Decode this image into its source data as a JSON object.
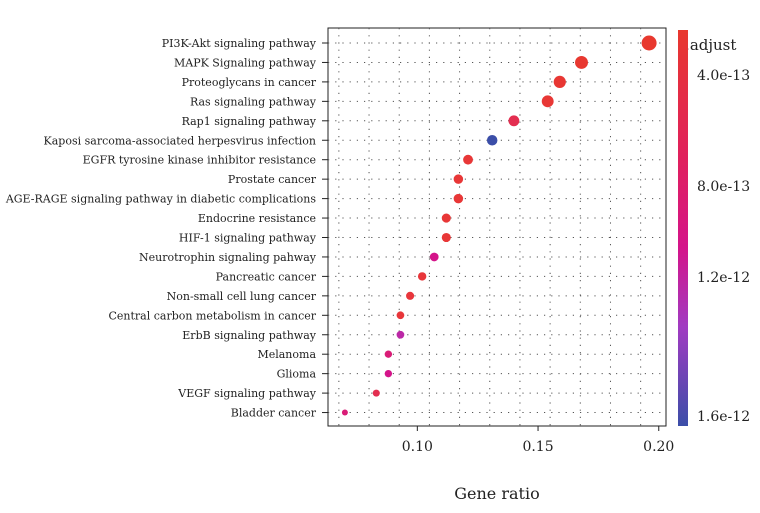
{
  "chart_data": {
    "type": "scatter",
    "xlabel": "Gene ratio",
    "ylabel": "",
    "xlim": [
      0.063,
      0.203
    ],
    "x_ticks": [
      0.1,
      0.15,
      0.2
    ],
    "x_tick_labels": [
      "0.10",
      "0.15",
      "0.20"
    ],
    "grid": true,
    "color_legend": {
      "title": "P.adjust",
      "position": "right",
      "labels": [
        "4.0e-13",
        "8.0e-13",
        "1.2e-12",
        "1.6e-12"
      ],
      "colors": {
        "low": "#e8382e",
        "mid": "#d4148a",
        "mid2": "#a13bc2",
        "high": "#3b4ea8"
      }
    },
    "points": [
      {
        "term": "PI3K-Akt signaling pathway",
        "gene_ratio": 0.196,
        "p_adjust": 1e-13,
        "count": 40
      },
      {
        "term": "MAPK Signaling pathway",
        "gene_ratio": 0.168,
        "p_adjust": 1.5e-13,
        "count": 34
      },
      {
        "term": "Proteoglycans in cancer",
        "gene_ratio": 0.159,
        "p_adjust": 2e-13,
        "count": 32
      },
      {
        "term": "Ras signaling pathway",
        "gene_ratio": 0.154,
        "p_adjust": 2.5e-13,
        "count": 31
      },
      {
        "term": "Rap1 signaling pathway",
        "gene_ratio": 0.14,
        "p_adjust": 5e-13,
        "count": 28
      },
      {
        "term": "Kaposi sarcoma-associated herpesvirus infection",
        "gene_ratio": 0.131,
        "p_adjust": 1.6e-12,
        "count": 27
      },
      {
        "term": "EGFR tyrosine kinase inhibitor resistance",
        "gene_ratio": 0.121,
        "p_adjust": 3e-13,
        "count": 25
      },
      {
        "term": "Prostate cancer",
        "gene_ratio": 0.117,
        "p_adjust": 3e-13,
        "count": 24
      },
      {
        "term": "AGE-RAGE signaling pathway in diabetic complications",
        "gene_ratio": 0.117,
        "p_adjust": 3e-13,
        "count": 24
      },
      {
        "term": "Endocrine resistance",
        "gene_ratio": 0.112,
        "p_adjust": 3e-13,
        "count": 23
      },
      {
        "term": "HIF-1 signaling pathway",
        "gene_ratio": 0.112,
        "p_adjust": 3e-13,
        "count": 23
      },
      {
        "term": "Neurotrophin signaling pahway",
        "gene_ratio": 0.107,
        "p_adjust": 8e-13,
        "count": 22
      },
      {
        "term": "Pancreatic cancer",
        "gene_ratio": 0.102,
        "p_adjust": 3.5e-13,
        "count": 21
      },
      {
        "term": "Non-small cell lung cancer",
        "gene_ratio": 0.097,
        "p_adjust": 4e-13,
        "count": 20
      },
      {
        "term": "Central carbon metabolism in cancer",
        "gene_ratio": 0.093,
        "p_adjust": 3.5e-13,
        "count": 19
      },
      {
        "term": "ErbB signaling pathway",
        "gene_ratio": 0.093,
        "p_adjust": 1e-12,
        "count": 19
      },
      {
        "term": "Melanoma",
        "gene_ratio": 0.088,
        "p_adjust": 7e-13,
        "count": 18
      },
      {
        "term": "Glioma",
        "gene_ratio": 0.088,
        "p_adjust": 8e-13,
        "count": 18
      },
      {
        "term": "VEGF signaling pathway",
        "gene_ratio": 0.083,
        "p_adjust": 5e-13,
        "count": 17
      },
      {
        "term": "Bladder cancer",
        "gene_ratio": 0.07,
        "p_adjust": 7e-13,
        "count": 14
      }
    ]
  }
}
